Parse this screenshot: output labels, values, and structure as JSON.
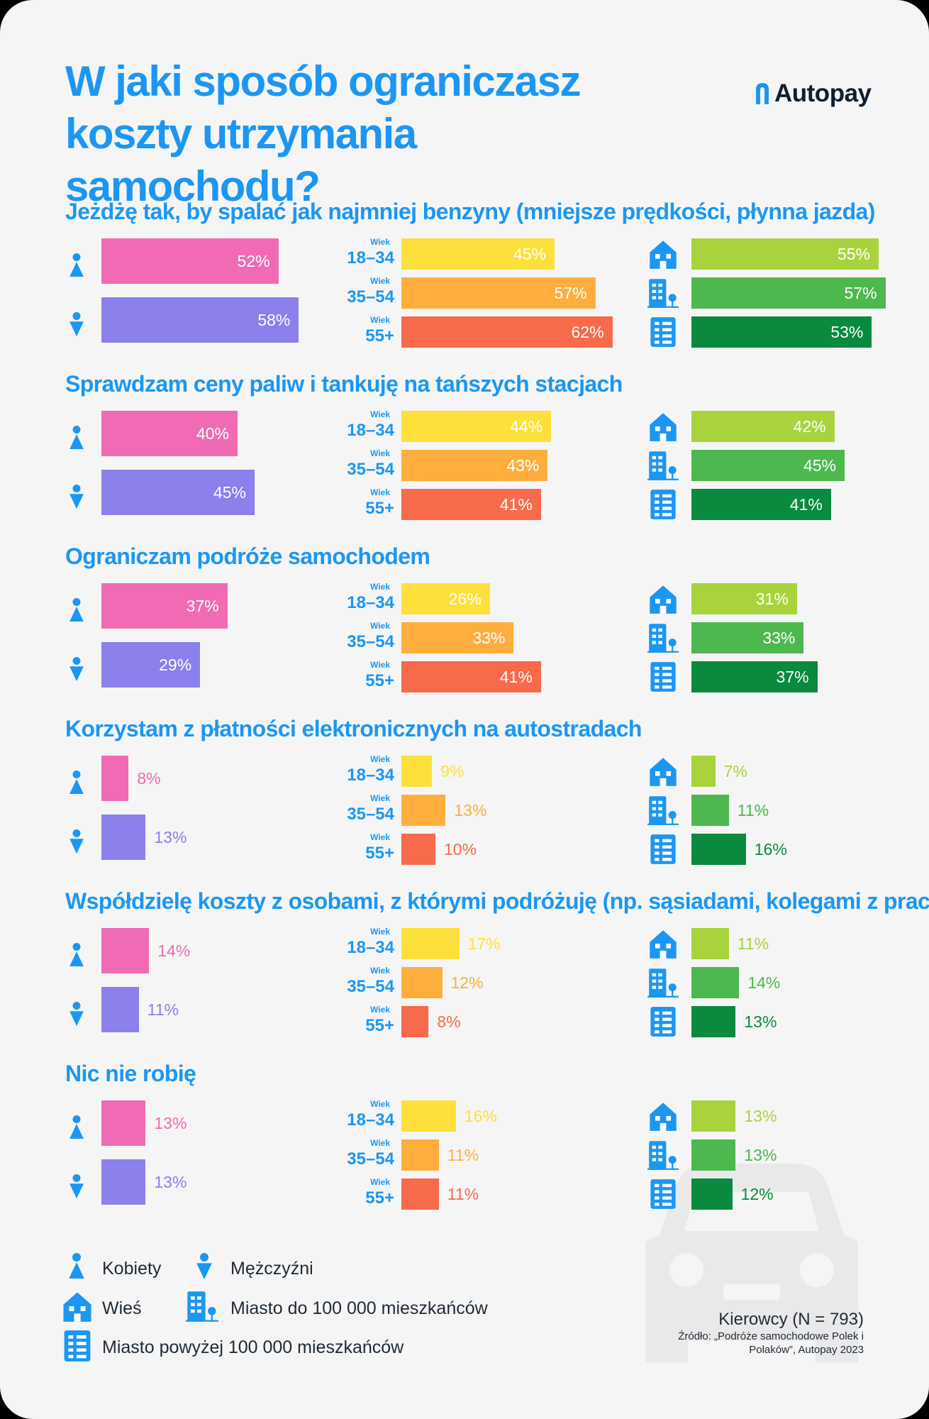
{
  "title": "W jaki sposób ograniczasz koszty utrzymania samochodu?",
  "brand": {
    "name": "Autopay"
  },
  "age_prefix": "Wiek",
  "age_groups": [
    "18–34",
    "35–54",
    "55+"
  ],
  "colors": {
    "accent": "#1b97f3",
    "women": "#f06bb3",
    "men": "#8b80ec",
    "age_18_34": "#fde03c",
    "age_35_54": "#ffae3d",
    "age_55_plus": "#f76a4a",
    "village": "#a8d33d",
    "city_under_100k": "#4db84e",
    "city_over_100k": "#0a8a3e"
  },
  "chart_data": [
    {
      "type": "bar",
      "title": "Jeżdżę tak, by spalać jak najmniej benzyny (mniejsze prędkości, płynna jazda)",
      "gender": {
        "women": 52,
        "men": 58
      },
      "age": [
        45,
        57,
        62
      ],
      "place": [
        55,
        57,
        53
      ]
    },
    {
      "type": "bar",
      "title": "Sprawdzam ceny paliw i tankuję na tańszych stacjach",
      "gender": {
        "women": 40,
        "men": 45
      },
      "age": [
        44,
        43,
        41
      ],
      "place": [
        42,
        45,
        41
      ]
    },
    {
      "type": "bar",
      "title": "Ograniczam podróże samochodem",
      "gender": {
        "women": 37,
        "men": 29
      },
      "age": [
        26,
        33,
        41
      ],
      "place": [
        31,
        33,
        37
      ]
    },
    {
      "type": "bar",
      "title": "Korzystam z płatności elektronicznych na autostradach",
      "gender": {
        "women": 8,
        "men": 13
      },
      "age": [
        9,
        13,
        10
      ],
      "place": [
        7,
        11,
        16
      ]
    },
    {
      "type": "bar",
      "title": "Współdzielę koszty z osobami, z którymi podróżuję (np. sąsiadami, kolegami z pracy)",
      "gender": {
        "women": 14,
        "men": 11
      },
      "age": [
        17,
        12,
        8
      ],
      "place": [
        11,
        14,
        13
      ]
    },
    {
      "type": "bar",
      "title": "Nic nie robię",
      "gender": {
        "women": 13,
        "men": 13
      },
      "age": [
        16,
        11,
        11
      ],
      "place": [
        13,
        13,
        12
      ]
    }
  ],
  "legend": {
    "women": "Kobiety",
    "men": "Mężczyźni",
    "village": "Wieś",
    "city_small": "Miasto do 100 000 mieszkańców",
    "city_large": "Miasto powyżej 100 000 mieszkańców"
  },
  "footer": {
    "sample": "Kierowcy (N = 793)",
    "source": "Źródło: „Podróże samochodowe Polek i Polaków”, Autopay 2023"
  },
  "icons": {
    "woman": "woman-icon",
    "man": "man-icon",
    "village": "house-icon",
    "city_small": "small-city-icon",
    "city_large": "large-city-icon",
    "brand": "autopay-logo-icon",
    "background": "car-silhouette-icon"
  }
}
